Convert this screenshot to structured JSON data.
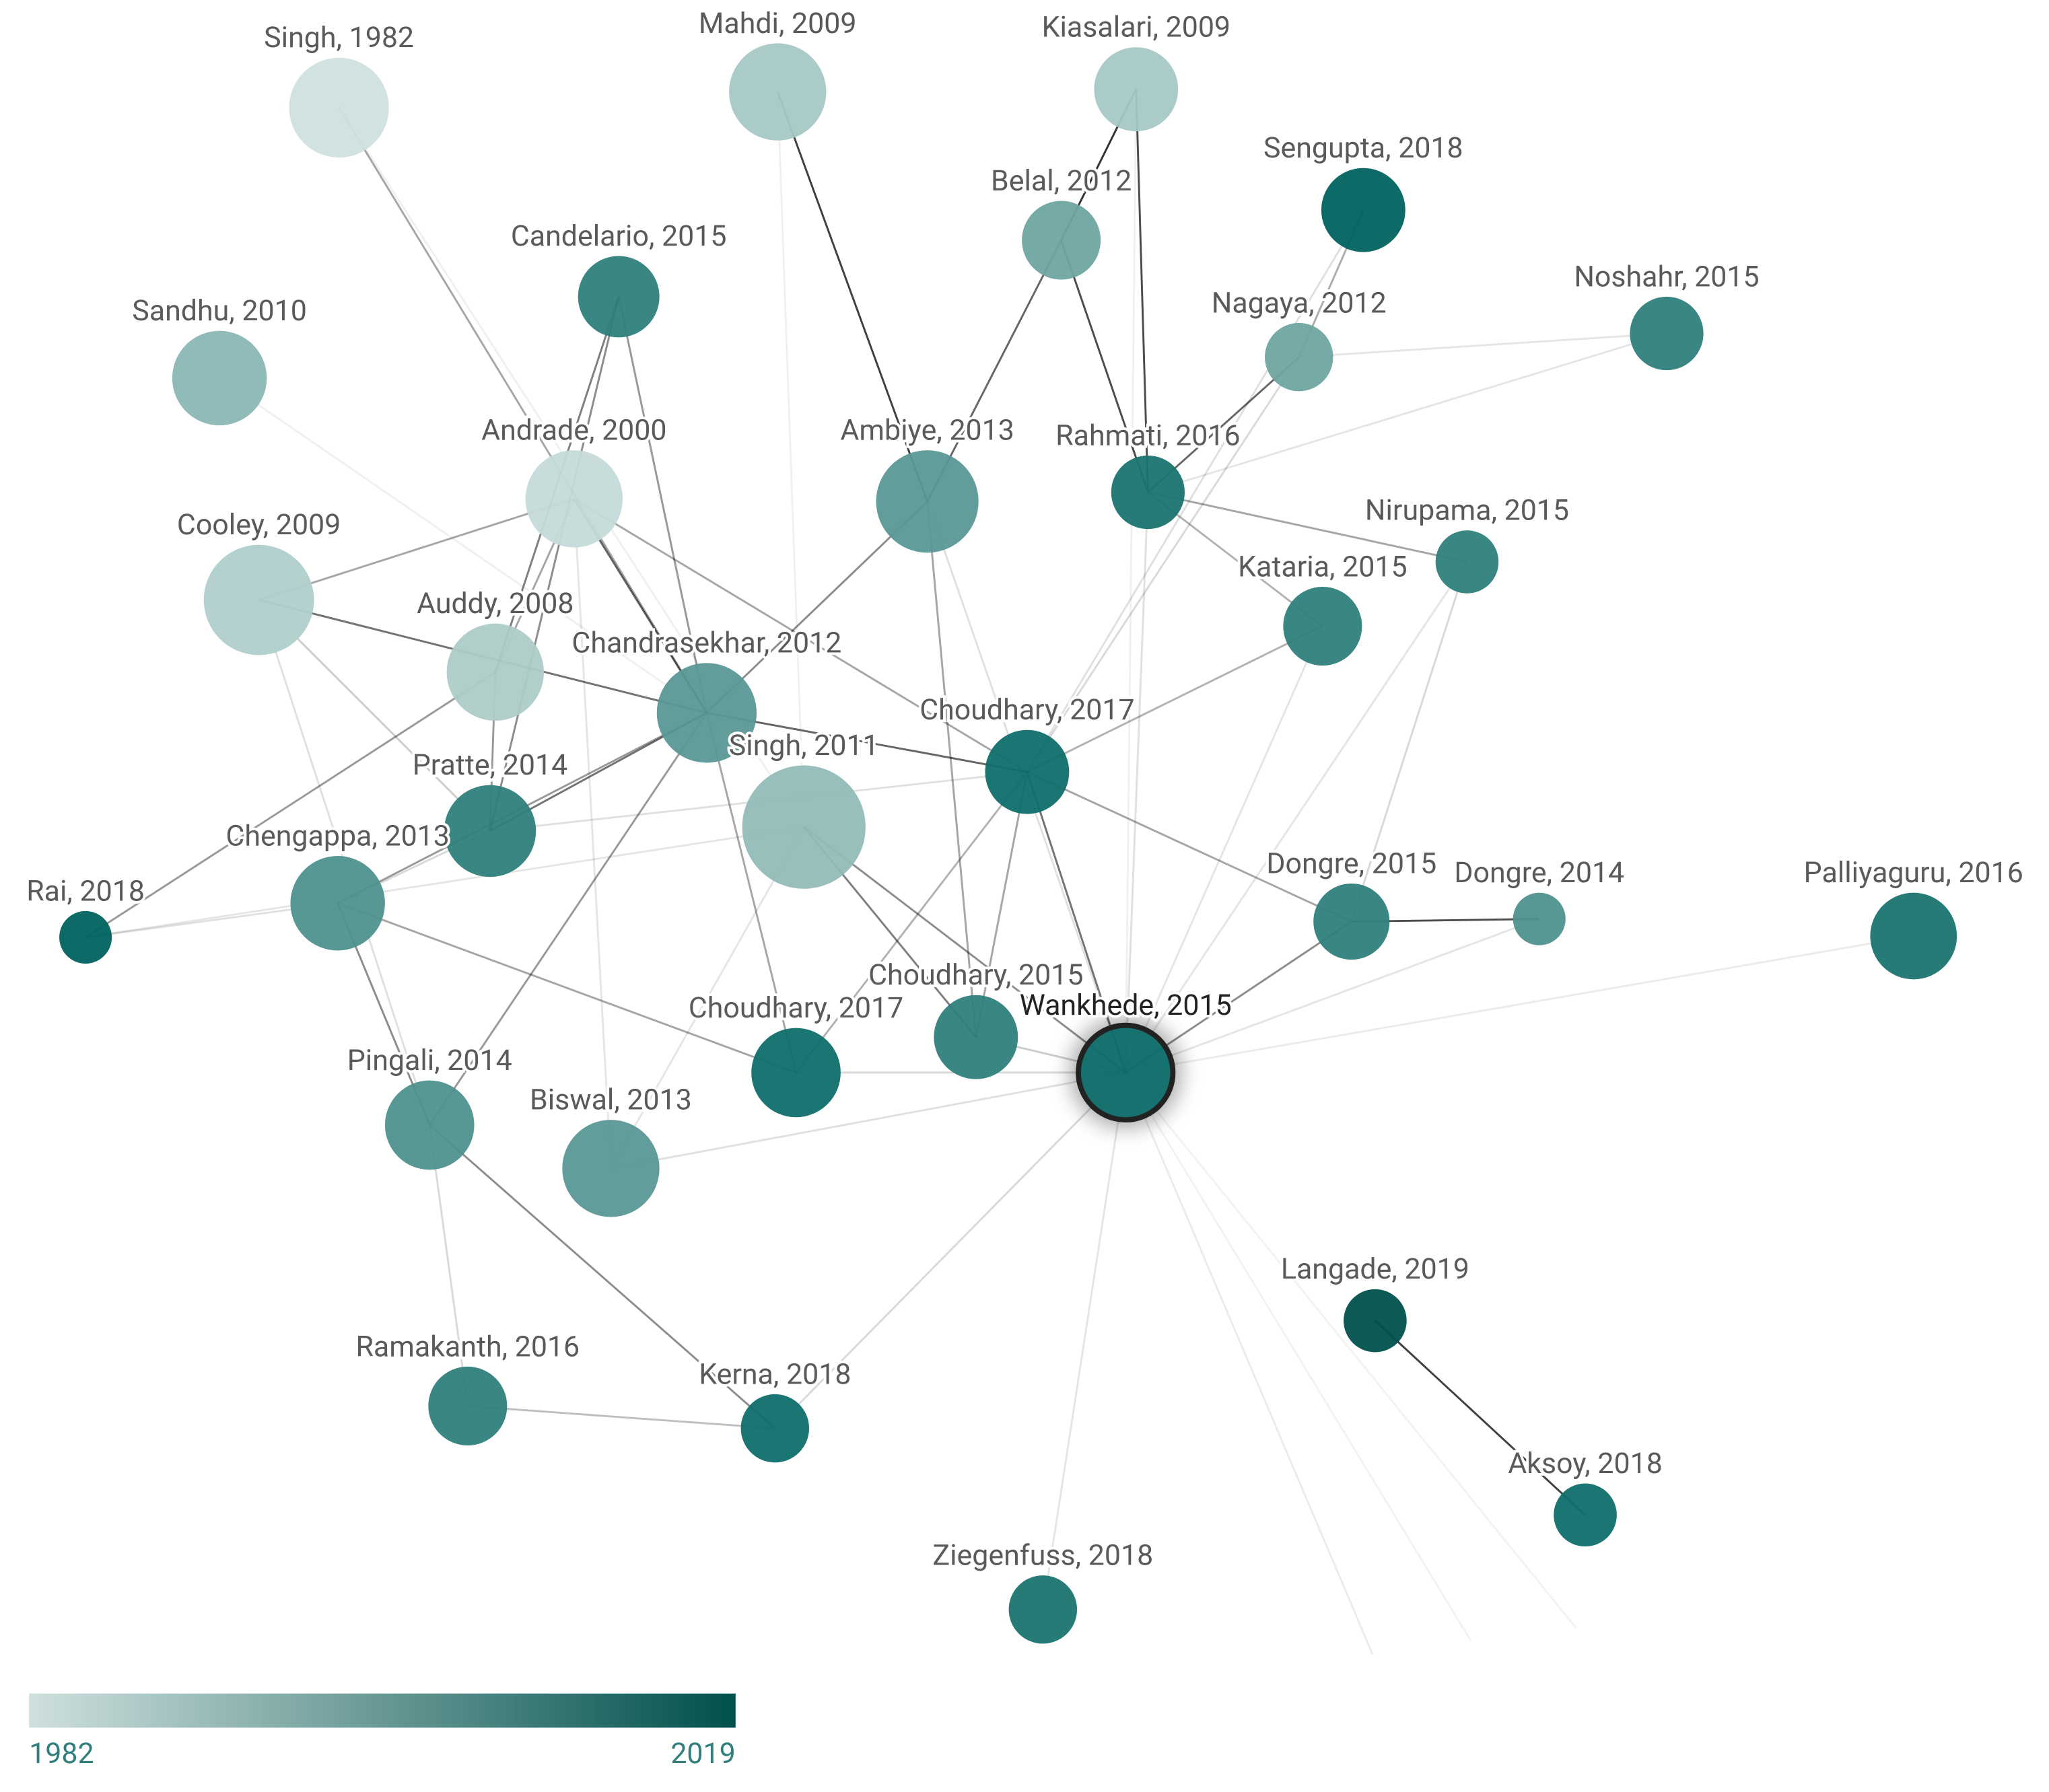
{
  "nodes": [
    {
      "label": "Singh, 1982",
      "color": "#cfe0de"
    },
    {
      "label": "Mahdi, 2009",
      "color": "#a6c8c5"
    },
    {
      "label": "Kiasalari, 2009",
      "color": "#a6c8c5"
    },
    {
      "label": "Sengupta, 2018",
      "color": "#00625e"
    },
    {
      "label": "Belal, 2012",
      "color": "#6fa5a2"
    },
    {
      "label": "Candelario, 2015",
      "color": "#2f7f7c"
    },
    {
      "label": "Sandhu, 2010",
      "color": "#8ab7b4"
    },
    {
      "label": "Nagaya, 2012",
      "color": "#6fa5a2"
    },
    {
      "label": "Noshahr, 2015",
      "color": "#2f7f7c"
    },
    {
      "label": "Andrade, 2000",
      "color": "#c5dbd9"
    },
    {
      "label": "Ambiye, 2013",
      "color": "#5a9896"
    },
    {
      "label": "Rahmati, 2016",
      "color": "#1a7470"
    },
    {
      "label": "Nirupama, 2015",
      "color": "#2f7f7c"
    },
    {
      "label": "Cooley, 2009",
      "color": "#b1cfcc"
    },
    {
      "label": "Kataria, 2015",
      "color": "#2f7f7c"
    },
    {
      "label": "Auddy, 2008",
      "color": "#adcbc8"
    },
    {
      "label": "Chandrasekhar, 2012",
      "color": "#5a9896"
    },
    {
      "label": "Choudhary, 2017",
      "color": "#0f6e6a"
    },
    {
      "label": "Singh, 2011",
      "color": "#94bcb9"
    },
    {
      "label": "Pratte, 2014",
      "color": "#2f7f7c"
    },
    {
      "label": "Chengappa, 2013",
      "color": "#4e918e"
    },
    {
      "label": "Rai, 2018",
      "color": "#00625e"
    },
    {
      "label": "Dongre, 2015",
      "color": "#2f7f7c"
    },
    {
      "label": "Dongre, 2014",
      "color": "#4e918e"
    },
    {
      "label": "Palliyaguru, 2016",
      "color": "#1a7470"
    },
    {
      "label": "Choudhary, 2015",
      "color": "#2f7f7c"
    },
    {
      "label": "Choudhary, 2017",
      "color": "#0f6e6a"
    },
    {
      "label": "Wankhede, 2015",
      "color": "#0f6e6a",
      "highlighted": true
    },
    {
      "label": "Pingali, 2014",
      "color": "#4e918e"
    },
    {
      "label": "Biswal, 2013",
      "color": "#5a9896"
    },
    {
      "label": "Langade, 2019",
      "color": "#00504c"
    },
    {
      "label": "Ramakanth, 2016",
      "color": "#2f7f7c"
    },
    {
      "label": "Kerna, 2018",
      "color": "#0f6e6a"
    },
    {
      "label": "Aksoy, 2018",
      "color": "#0f6e6a"
    },
    {
      "label": "Ziegenfuss, 2018",
      "color": "#1a7470"
    }
  ],
  "legend": {
    "min_label": "1982",
    "max_label": "2019",
    "colors": [
      "#cfe0de",
      "#00504c"
    ]
  }
}
